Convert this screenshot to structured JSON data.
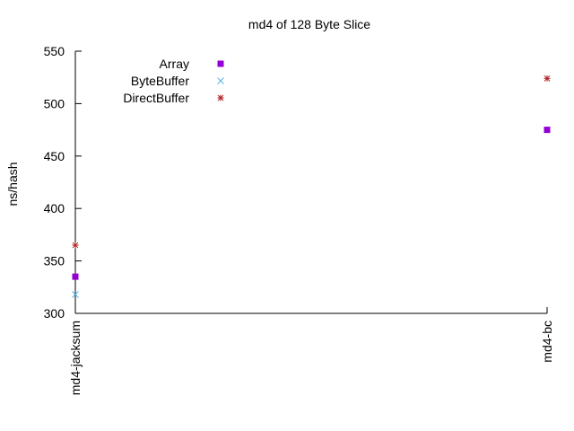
{
  "chart_data": {
    "type": "scatter",
    "title": "md4 of 128 Byte Slice",
    "xlabel": "",
    "ylabel": "ns/hash",
    "categories": [
      "md4-jacksum",
      "md4-bc"
    ],
    "ylim": [
      300,
      550
    ],
    "yticks": [
      300,
      350,
      400,
      450,
      500,
      550
    ],
    "grid": false,
    "legend_position": "top-left",
    "series": [
      {
        "name": "Array",
        "marker": "square",
        "color": "#9400d3",
        "values": [
          335,
          475
        ]
      },
      {
        "name": "ByteBuffer",
        "marker": "x",
        "color": "#56b4e9",
        "values": [
          318,
          null
        ]
      },
      {
        "name": "DirectBuffer",
        "marker": "star",
        "color": "#b22222",
        "values": [
          365,
          524
        ]
      }
    ]
  }
}
